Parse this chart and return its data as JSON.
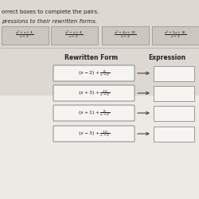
{
  "background_color_top": "#ddd9d2",
  "background_color_bottom": "#eceae5",
  "text_color": "#222222",
  "title_line1": "orrect boxes to complete the pairs.",
  "title_line2": "pressions to their rewritten forms.",
  "top_expressions": [
    "$\\frac{x^2+x+4}{x-2}$",
    "$\\frac{x^2-x+4}{x-2}$",
    "$\\frac{x^2-4x+10}{x-2}$",
    "$\\frac{x^2-5x+16}{x-2}$"
  ],
  "top_box_facecolor": "#cbc7bf",
  "top_box_edgecolor": "#999999",
  "col_header_left": "Rewritten Form",
  "col_header_right": "Expression",
  "rewritten_forms": [
    "$(x-2)+\\frac{8}{x-2}$",
    "$(x+3)+\\frac{10}{x-2}$",
    "$(x+1)+\\frac{8}{x-2}$",
    "$(x-3)+\\frac{10}{x-2}$"
  ],
  "lbox_facecolor": "#f5f4f0",
  "lbox_edgecolor": "#888888",
  "rbox_facecolor": "#f5f4f0",
  "rbox_edgecolor": "#999999",
  "arrow_color": "#444444"
}
